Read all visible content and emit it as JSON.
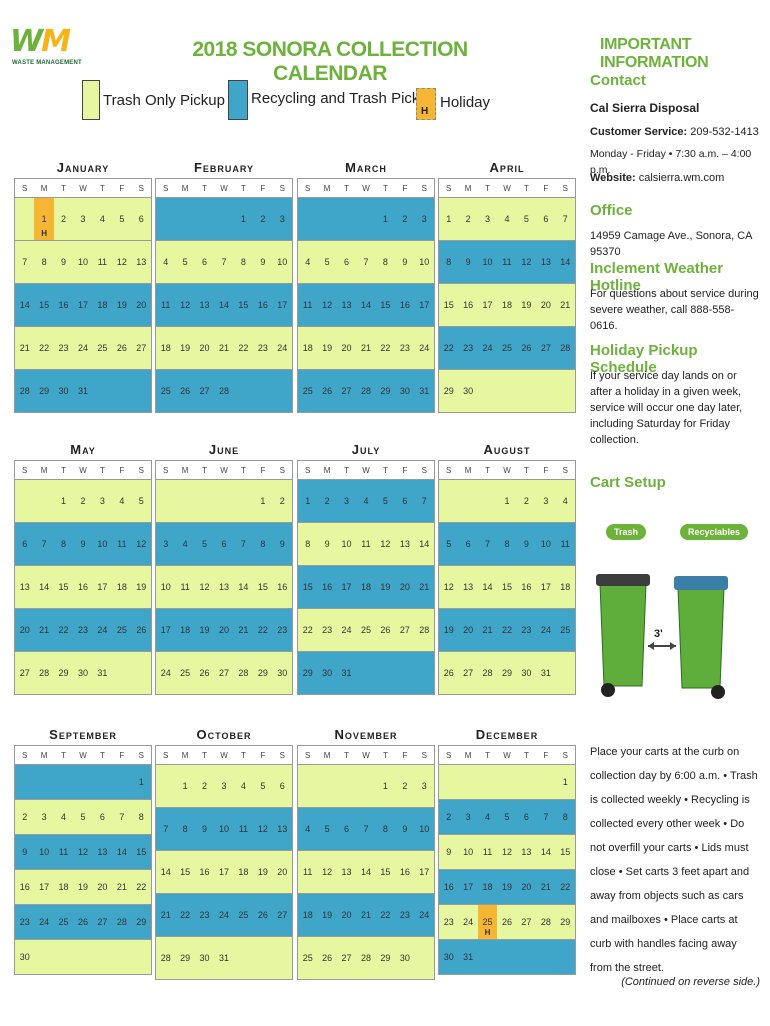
{
  "logo": {
    "mark_left": "W",
    "mark_right": "M",
    "subtitle": "WASTE MANAGEMENT"
  },
  "title": "2018 SONORA COLLECTION CALENDAR",
  "legend": {
    "trash_only": "Trash Only Pickup",
    "recycling_trash": "Recycling and Trash Pickup",
    "holiday_mark": "H",
    "holiday": "Holiday"
  },
  "colors": {
    "green": "#e6f7a0",
    "blue": "#3fa6c9",
    "holiday": "#f5b634",
    "brand_green": "#6db23a"
  },
  "dow": [
    "S",
    "M",
    "T",
    "W",
    "T",
    "F",
    "S"
  ],
  "months": [
    {
      "name": "January",
      "weeks": [
        {
          "c": "green",
          "d": [
            "",
            "1",
            "2",
            "3",
            "4",
            "5",
            "6"
          ]
        },
        {
          "c": "green",
          "d": [
            "7",
            "8",
            "9",
            "10",
            "11",
            "12",
            "13"
          ]
        },
        {
          "c": "blue",
          "d": [
            "14",
            "15",
            "16",
            "17",
            "18",
            "19",
            "20"
          ]
        },
        {
          "c": "green",
          "d": [
            "21",
            "22",
            "23",
            "24",
            "25",
            "26",
            "27"
          ]
        },
        {
          "c": "blue",
          "d": [
            "28",
            "29",
            "30",
            "31",
            "",
            "",
            ""
          ]
        }
      ],
      "holiday": "1"
    },
    {
      "name": "February",
      "weeks": [
        {
          "c": "blue",
          "d": [
            "",
            "",
            "",
            "",
            "1",
            "2",
            "3"
          ]
        },
        {
          "c": "green",
          "d": [
            "4",
            "5",
            "6",
            "7",
            "8",
            "9",
            "10"
          ]
        },
        {
          "c": "blue",
          "d": [
            "11",
            "12",
            "13",
            "14",
            "15",
            "16",
            "17"
          ]
        },
        {
          "c": "green",
          "d": [
            "18",
            "19",
            "20",
            "21",
            "22",
            "23",
            "24"
          ]
        },
        {
          "c": "blue",
          "d": [
            "25",
            "26",
            "27",
            "28",
            "",
            "",
            ""
          ]
        }
      ]
    },
    {
      "name": "March",
      "weeks": [
        {
          "c": "blue",
          "d": [
            "",
            "",
            "",
            "",
            "1",
            "2",
            "3"
          ]
        },
        {
          "c": "green",
          "d": [
            "4",
            "5",
            "6",
            "7",
            "8",
            "9",
            "10"
          ]
        },
        {
          "c": "blue",
          "d": [
            "11",
            "12",
            "13",
            "14",
            "15",
            "16",
            "17"
          ]
        },
        {
          "c": "green",
          "d": [
            "18",
            "19",
            "20",
            "21",
            "22",
            "23",
            "24"
          ]
        },
        {
          "c": "blue",
          "d": [
            "25",
            "26",
            "27",
            "28",
            "29",
            "30",
            "31"
          ]
        }
      ]
    },
    {
      "name": "April",
      "weeks": [
        {
          "c": "green",
          "d": [
            "1",
            "2",
            "3",
            "4",
            "5",
            "6",
            "7"
          ]
        },
        {
          "c": "blue",
          "d": [
            "8",
            "9",
            "10",
            "11",
            "12",
            "13",
            "14"
          ]
        },
        {
          "c": "green",
          "d": [
            "15",
            "16",
            "17",
            "18",
            "19",
            "20",
            "21"
          ]
        },
        {
          "c": "blue",
          "d": [
            "22",
            "23",
            "24",
            "25",
            "26",
            "27",
            "28"
          ]
        },
        {
          "c": "green",
          "d": [
            "29",
            "30",
            "",
            "",
            "",
            "",
            ""
          ]
        }
      ]
    },
    {
      "name": "May",
      "weeks": [
        {
          "c": "green",
          "d": [
            "",
            "",
            "1",
            "2",
            "3",
            "4",
            "5"
          ]
        },
        {
          "c": "blue",
          "d": [
            "6",
            "7",
            "8",
            "9",
            "10",
            "11",
            "12"
          ]
        },
        {
          "c": "green",
          "d": [
            "13",
            "14",
            "15",
            "16",
            "17",
            "18",
            "19"
          ]
        },
        {
          "c": "blue",
          "d": [
            "20",
            "21",
            "22",
            "23",
            "24",
            "25",
            "26"
          ]
        },
        {
          "c": "green",
          "d": [
            "27",
            "28",
            "29",
            "30",
            "31",
            "",
            ""
          ]
        }
      ]
    },
    {
      "name": "June",
      "weeks": [
        {
          "c": "green",
          "d": [
            "",
            "",
            "",
            "",
            "",
            "1",
            "2"
          ]
        },
        {
          "c": "blue",
          "d": [
            "3",
            "4",
            "5",
            "6",
            "7",
            "8",
            "9"
          ]
        },
        {
          "c": "green",
          "d": [
            "10",
            "11",
            "12",
            "13",
            "14",
            "15",
            "16"
          ]
        },
        {
          "c": "blue",
          "d": [
            "17",
            "18",
            "19",
            "20",
            "21",
            "22",
            "23"
          ]
        },
        {
          "c": "green",
          "d": [
            "24",
            "25",
            "26",
            "27",
            "28",
            "29",
            "30"
          ]
        }
      ]
    },
    {
      "name": "July",
      "weeks": [
        {
          "c": "blue",
          "d": [
            "1",
            "2",
            "3",
            "4",
            "5",
            "6",
            "7"
          ]
        },
        {
          "c": "green",
          "d": [
            "8",
            "9",
            "10",
            "11",
            "12",
            "13",
            "14"
          ]
        },
        {
          "c": "blue",
          "d": [
            "15",
            "16",
            "17",
            "18",
            "19",
            "20",
            "21"
          ]
        },
        {
          "c": "green",
          "d": [
            "22",
            "23",
            "24",
            "25",
            "26",
            "27",
            "28"
          ]
        },
        {
          "c": "blue",
          "d": [
            "29",
            "30",
            "31",
            "",
            "",
            "",
            ""
          ]
        }
      ]
    },
    {
      "name": "August",
      "weeks": [
        {
          "c": "green",
          "d": [
            "",
            "",
            "",
            "1",
            "2",
            "3",
            "4"
          ]
        },
        {
          "c": "blue",
          "d": [
            "5",
            "6",
            "7",
            "8",
            "9",
            "10",
            "11"
          ]
        },
        {
          "c": "green",
          "d": [
            "12",
            "13",
            "14",
            "15",
            "16",
            "17",
            "18"
          ]
        },
        {
          "c": "blue",
          "d": [
            "19",
            "20",
            "21",
            "22",
            "23",
            "24",
            "25"
          ]
        },
        {
          "c": "green",
          "d": [
            "26",
            "27",
            "28",
            "29",
            "30",
            "31",
            ""
          ]
        }
      ]
    },
    {
      "name": "September",
      "weeks": [
        {
          "c": "blue",
          "d": [
            "",
            "",
            "",
            "",
            "",
            "",
            "1"
          ]
        },
        {
          "c": "green",
          "d": [
            "2",
            "3",
            "4",
            "5",
            "6",
            "7",
            "8"
          ]
        },
        {
          "c": "blue",
          "d": [
            "9",
            "10",
            "11",
            "12",
            "13",
            "14",
            "15"
          ]
        },
        {
          "c": "green",
          "d": [
            "16",
            "17",
            "18",
            "19",
            "20",
            "21",
            "22"
          ]
        },
        {
          "c": "blue",
          "d": [
            "23",
            "24",
            "25",
            "26",
            "27",
            "28",
            "29"
          ]
        },
        {
          "c": "green",
          "d": [
            "30",
            "",
            "",
            "",
            "",
            "",
            ""
          ]
        }
      ]
    },
    {
      "name": "October",
      "weeks": [
        {
          "c": "green",
          "d": [
            "",
            "1",
            "2",
            "3",
            "4",
            "5",
            "6"
          ]
        },
        {
          "c": "blue",
          "d": [
            "7",
            "8",
            "9",
            "10",
            "11",
            "12",
            "13"
          ]
        },
        {
          "c": "green",
          "d": [
            "14",
            "15",
            "16",
            "17",
            "18",
            "19",
            "20"
          ]
        },
        {
          "c": "blue",
          "d": [
            "21",
            "22",
            "23",
            "24",
            "25",
            "26",
            "27"
          ]
        },
        {
          "c": "green",
          "d": [
            "28",
            "29",
            "30",
            "31",
            "",
            "",
            ""
          ]
        }
      ]
    },
    {
      "name": "November",
      "weeks": [
        {
          "c": "green",
          "d": [
            "",
            "",
            "",
            "",
            "1",
            "2",
            "3"
          ]
        },
        {
          "c": "blue",
          "d": [
            "4",
            "5",
            "6",
            "7",
            "8",
            "9",
            "10"
          ]
        },
        {
          "c": "green",
          "d": [
            "11",
            "12",
            "13",
            "14",
            "15",
            "16",
            "17"
          ]
        },
        {
          "c": "blue",
          "d": [
            "18",
            "19",
            "20",
            "21",
            "22",
            "23",
            "24"
          ]
        },
        {
          "c": "green",
          "d": [
            "25",
            "26",
            "27",
            "28",
            "29",
            "30",
            ""
          ]
        }
      ]
    },
    {
      "name": "December",
      "weeks": [
        {
          "c": "green",
          "d": [
            "",
            "",
            "",
            "",
            "",
            "",
            "1"
          ]
        },
        {
          "c": "blue",
          "d": [
            "2",
            "3",
            "4",
            "5",
            "6",
            "7",
            "8"
          ]
        },
        {
          "c": "green",
          "d": [
            "9",
            "10",
            "11",
            "12",
            "13",
            "14",
            "15"
          ]
        },
        {
          "c": "blue",
          "d": [
            "16",
            "17",
            "18",
            "19",
            "20",
            "21",
            "22"
          ]
        },
        {
          "c": "green",
          "d": [
            "23",
            "24",
            "25",
            "26",
            "27",
            "28",
            "29"
          ]
        },
        {
          "c": "blue",
          "d": [
            "30",
            "31",
            "",
            "",
            "",
            "",
            ""
          ]
        }
      ],
      "holiday": "25"
    }
  ],
  "info": {
    "heading": "IMPORTANT INFORMATION",
    "contact_title": "Contact",
    "company": "Cal Sierra Disposal",
    "service_label": "Customer Service:",
    "service_phone": "209-532-1413",
    "hours": "Monday - Friday • 7:30 a.m. – 4:00 p.m.",
    "website_label": "Website:",
    "website": "calsierra.wm.com",
    "office_title": "Office",
    "office_address": "14959 Camage Ave., Sonora, CA 95370",
    "weather_title": "Inclement Weather Hotline",
    "weather_text": "For questions about service during severe weather, call 888-558-0616.",
    "holiday_title": "Holiday Pickup Schedule",
    "holiday_text": "If your service day lands on or after a holiday in a given week, service will occur one day later, including Saturday for Friday collection.",
    "cart_title": "Cart Setup",
    "trash_label": "Trash",
    "recyclables_label": "Recyclables",
    "spacing": "3'",
    "cart_text": "Place your carts at the curb on collection day by 6:00 a.m. • Trash is collected weekly • Recycling is collected every other week • Do not overfill your carts • Lids must close • Set carts 3 feet apart and away from objects such as cars and mailboxes • Place carts at curb with handles facing away from the street.",
    "continued": "(Continued on reverse side.)"
  }
}
